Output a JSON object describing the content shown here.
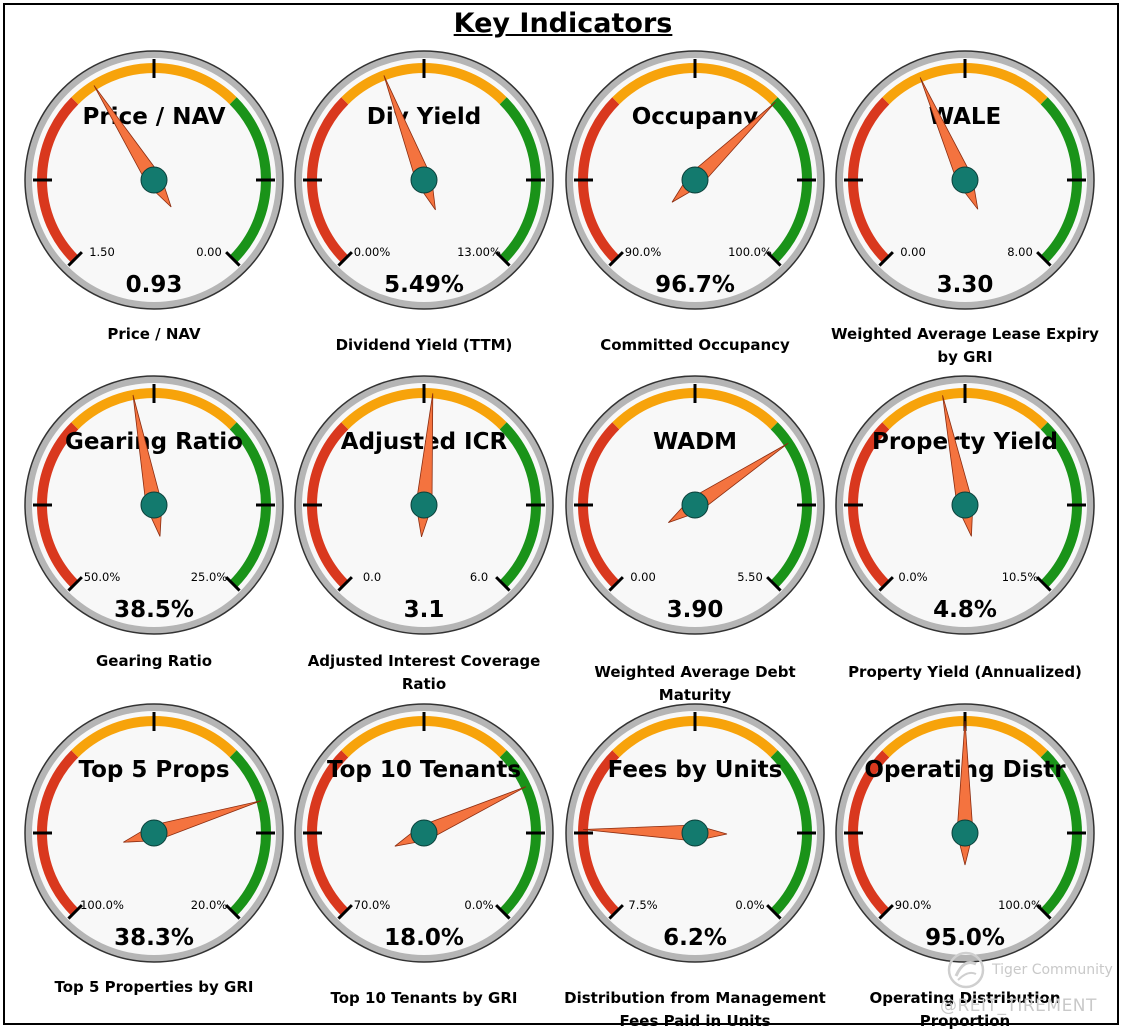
{
  "title": "Key Indicators",
  "colors": {
    "red": "#d9381e",
    "orange": "#f7a30b",
    "green": "#1a9319",
    "face": "#f8f8f8",
    "rim": "#b5b5b5",
    "needle": "#f4733f",
    "hub": "#137a6e"
  },
  "watermark": {
    "brand": "Tiger Community",
    "handle": "@REIT_TIREMENT"
  },
  "chart_data": [
    {
      "type": "gauge",
      "title": "Price / NAV",
      "caption": "Price / NAV",
      "value_label": "0.93",
      "min_label": "1.50",
      "max_label": "0.00",
      "needle_value": 0.93,
      "scale_min": 1.5,
      "scale_max": 0.0
    },
    {
      "type": "gauge",
      "title": "Div Yield",
      "caption": "Dividend Yield (TTM)",
      "value_label": "5.49%",
      "min_label": "0.00%",
      "max_label": "13.00%",
      "needle_value": 5.49,
      "scale_min": 0.0,
      "scale_max": 13.0
    },
    {
      "type": "gauge",
      "title": "Occupany",
      "caption": "Committed Occupancy",
      "value_label": "96.7%",
      "min_label": "90.0%",
      "max_label": "100.0%",
      "needle_value": 96.7,
      "scale_min": 90.0,
      "scale_max": 100.0
    },
    {
      "type": "gauge",
      "title": "WALE",
      "caption": "Weighted Average Lease Expiry by GRI",
      "value_label": "3.30",
      "min_label": "0.00",
      "max_label": "8.00",
      "needle_value": 3.3,
      "scale_min": 0.0,
      "scale_max": 8.0
    },
    {
      "type": "gauge",
      "title": "Gearing Ratio",
      "caption": "Gearing Ratio",
      "value_label": "38.5%",
      "min_label": "50.0%",
      "max_label": "25.0%",
      "needle_value": 38.5,
      "scale_min": 50.0,
      "scale_max": 25.0
    },
    {
      "type": "gauge",
      "title": "Adjusted ICR",
      "caption": "Adjusted Interest Coverage Ratio",
      "value_label": "3.1",
      "min_label": "0.0",
      "max_label": "6.0",
      "needle_value": 3.1,
      "scale_min": 0.0,
      "scale_max": 6.0
    },
    {
      "type": "gauge",
      "title": "WADM",
      "caption": "Weighted Average Debt Maturity",
      "value_label": "3.90",
      "min_label": "0.00",
      "max_label": "5.50",
      "needle_value": 3.9,
      "scale_min": 0.0,
      "scale_max": 5.5
    },
    {
      "type": "gauge",
      "title": "Property Yield",
      "caption": "Property Yield (Annualized)",
      "value_label": "4.8%",
      "min_label": "0.0%",
      "max_label": "10.5%",
      "needle_value": 4.8,
      "scale_min": 0.0,
      "scale_max": 10.5
    },
    {
      "type": "gauge",
      "title": "Top 5 Props",
      "caption": "Top 5 Properties by GRI",
      "value_label": "38.3%",
      "min_label": "100.0%",
      "max_label": "20.0%",
      "needle_value": 38.3,
      "scale_min": 100.0,
      "scale_max": 20.0
    },
    {
      "type": "gauge",
      "title": "Top 10 Tenants",
      "caption": "Top 10 Tenants by GRI",
      "value_label": "18.0%",
      "min_label": "70.0%",
      "max_label": "0.0%",
      "needle_value": 18.0,
      "scale_min": 70.0,
      "scale_max": 0.0
    },
    {
      "type": "gauge",
      "title": "Fees by Units",
      "caption": "Distribution from Management Fees Paid in Units",
      "value_label": "6.2%",
      "min_label": "7.5%",
      "max_label": "0.0%",
      "needle_value": 6.2,
      "scale_min": 7.5,
      "scale_max": 0.0
    },
    {
      "type": "gauge",
      "title": "Operating Distr",
      "caption": "Operating Distribution Proportion",
      "value_label": "95.0%",
      "min_label": "90.0%",
      "max_label": "100.0%",
      "needle_value": 95.0,
      "scale_min": 90.0,
      "scale_max": 100.0
    }
  ]
}
